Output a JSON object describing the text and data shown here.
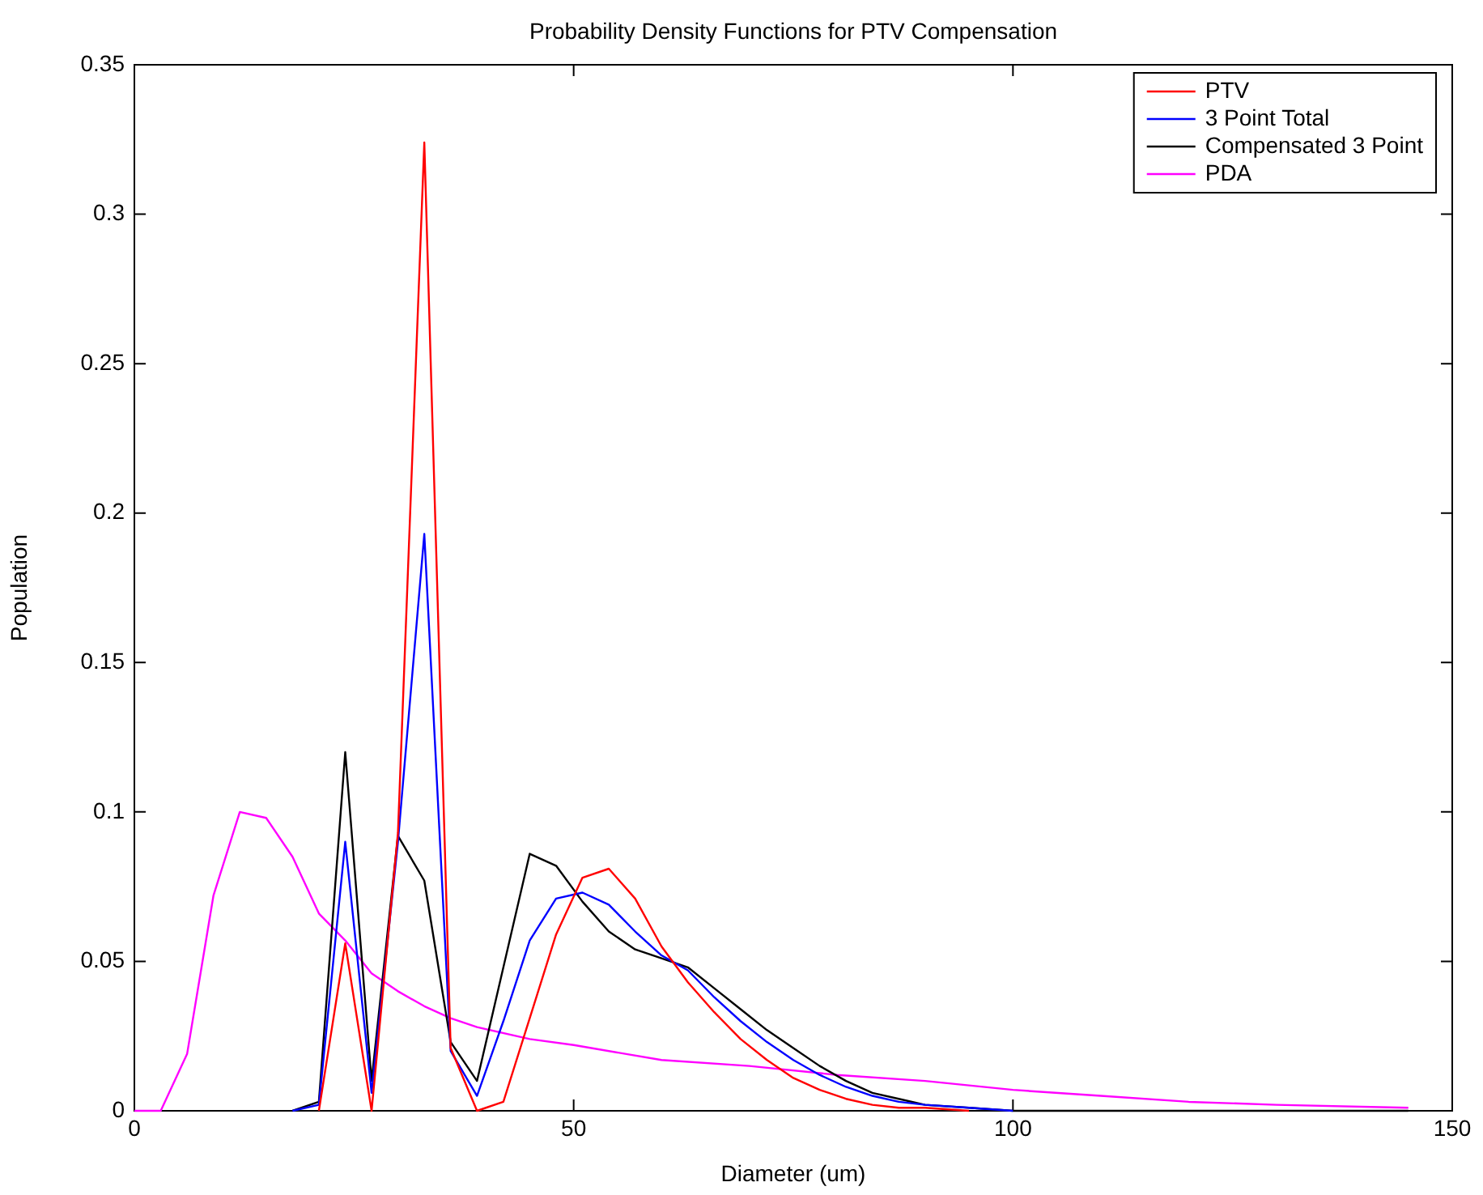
{
  "chart_data": {
    "type": "line",
    "title": "Probability Density Functions for PTV Compensation",
    "xlabel": "Diameter (um)",
    "ylabel": "Population",
    "xlim": [
      0,
      150
    ],
    "xticks": [
      0,
      50,
      100,
      150
    ],
    "ylim": [
      0,
      0.35
    ],
    "yticks": [
      0,
      0.05,
      0.1,
      0.15,
      0.2,
      0.25,
      0.3,
      0.35
    ],
    "grid": false,
    "legend": "top right",
    "marker": "none",
    "line_style": "solid",
    "series": [
      {
        "name": "PTV",
        "color": "#ff0000",
        "x": [
          21,
          24,
          27,
          30,
          33,
          36,
          39,
          42,
          45,
          48,
          51,
          54,
          57,
          60,
          63,
          66,
          69,
          72,
          75,
          78,
          81,
          84,
          87,
          90,
          95
        ],
        "values": [
          0,
          0.056,
          0,
          0.093,
          0.324,
          0.021,
          0,
          0.003,
          0.031,
          0.059,
          0.078,
          0.081,
          0.071,
          0.055,
          0.043,
          0.033,
          0.024,
          0.017,
          0.011,
          0.007,
          0.004,
          0.002,
          0.001,
          0.001,
          0
        ]
      },
      {
        "name": "3 Point Total",
        "color": "#0000ff",
        "x": [
          18,
          21,
          24,
          27,
          30,
          33,
          36,
          39,
          42,
          45,
          48,
          51,
          54,
          57,
          60,
          63,
          66,
          69,
          72,
          75,
          78,
          81,
          84,
          87,
          90,
          95,
          100
        ],
        "values": [
          0,
          0.002,
          0.09,
          0.006,
          0.09,
          0.193,
          0.02,
          0.005,
          0.03,
          0.057,
          0.071,
          0.073,
          0.069,
          0.06,
          0.052,
          0.047,
          0.038,
          0.03,
          0.023,
          0.017,
          0.012,
          0.008,
          0.005,
          0.003,
          0.002,
          0.001,
          0
        ]
      },
      {
        "name": "Compensated 3 Point",
        "color": "#000000",
        "x": [
          18,
          21,
          24,
          27,
          30,
          33,
          36,
          39,
          42,
          45,
          48,
          51,
          54,
          57,
          60,
          63,
          66,
          69,
          72,
          75,
          78,
          81,
          84,
          87,
          90,
          95,
          100,
          145
        ],
        "values": [
          0,
          0.003,
          0.12,
          0.01,
          0.092,
          0.077,
          0.023,
          0.01,
          0.048,
          0.086,
          0.082,
          0.07,
          0.06,
          0.054,
          0.051,
          0.048,
          0.041,
          0.034,
          0.027,
          0.021,
          0.015,
          0.01,
          0.006,
          0.004,
          0.002,
          0.001,
          0,
          0
        ]
      },
      {
        "name": "PDA",
        "color": "#ff00ff",
        "x": [
          0,
          3,
          6,
          9,
          12,
          15,
          18,
          21,
          24,
          27,
          30,
          33,
          36,
          39,
          45,
          50,
          60,
          70,
          80,
          90,
          100,
          110,
          120,
          130,
          145
        ],
        "values": [
          0,
          0,
          0.019,
          0.072,
          0.1,
          0.098,
          0.085,
          0.066,
          0.057,
          0.046,
          0.04,
          0.035,
          0.031,
          0.028,
          0.024,
          0.022,
          0.017,
          0.015,
          0.012,
          0.01,
          0.007,
          0.005,
          0.003,
          0.002,
          0.001
        ]
      }
    ]
  }
}
